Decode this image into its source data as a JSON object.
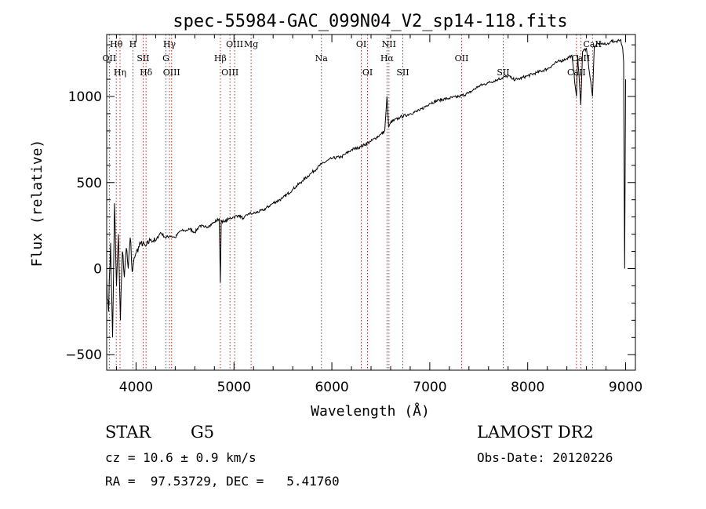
{
  "chart_data": {
    "type": "line",
    "title": "spec-55984-GAC_099N04_V2_sp14-118.fits",
    "xlabel": "Wavelength (Å)",
    "ylabel": "Flux (relative)",
    "xlim": [
      3700,
      9100
    ],
    "ylim": [
      -590,
      1360
    ],
    "xticks": [
      4000,
      5000,
      6000,
      7000,
      8000,
      9000
    ],
    "xtick_labels": [
      "4000",
      "5000",
      "6000",
      "7000",
      "8000",
      "9000"
    ],
    "yticks": [
      -500,
      0,
      500,
      1000
    ],
    "ytick_labels": [
      "−500",
      "0",
      "500",
      "1000"
    ],
    "grid": false,
    "legend": "none",
    "series": [
      {
        "color": "#000000",
        "x": [
          3700,
          3720,
          3740,
          3760,
          3780,
          3800,
          3820,
          3840,
          3860,
          3880,
          3900,
          3920,
          3940,
          3960,
          3980,
          4000,
          4050,
          4100,
          4150,
          4200,
          4250,
          4300,
          4350,
          4400,
          4450,
          4500,
          4550,
          4600,
          4650,
          4700,
          4750,
          4800,
          4850,
          4861,
          4870,
          4900,
          4950,
          5000,
          5050,
          5100,
          5150,
          5200,
          5300,
          5400,
          5500,
          5600,
          5700,
          5800,
          5900,
          6000,
          6100,
          6200,
          6300,
          6400,
          6500,
          6540,
          6563,
          6580,
          6600,
          6700,
          6800,
          6900,
          7000,
          7100,
          7200,
          7300,
          7400,
          7500,
          7600,
          7700,
          7800,
          7850,
          7900,
          8000,
          8100,
          8200,
          8300,
          8400,
          8450,
          8498,
          8510,
          8542,
          8560,
          8600,
          8662,
          8680,
          8700,
          8750,
          8800,
          8850,
          8900,
          8950,
          8970,
          8980,
          8990,
          9000
        ],
        "y": [
          -50,
          -250,
          150,
          -400,
          380,
          -100,
          200,
          -300,
          100,
          -50,
          120,
          0,
          180,
          -20,
          60,
          90,
          150,
          130,
          170,
          160,
          210,
          180,
          190,
          180,
          220,
          220,
          230,
          210,
          250,
          240,
          250,
          270,
          290,
          -80,
          280,
          270,
          290,
          300,
          310,
          290,
          320,
          320,
          340,
          380,
          410,
          460,
          510,
          560,
          610,
          640,
          650,
          690,
          710,
          740,
          780,
          800,
          1000,
          820,
          850,
          880,
          900,
          920,
          960,
          980,
          990,
          1000,
          1020,
          1060,
          1080,
          1100,
          1120,
          1100,
          1100,
          1120,
          1140,
          1160,
          1200,
          1220,
          1240,
          1000,
          1240,
          950,
          1260,
          1280,
          1000,
          1290,
          1300,
          1310,
          1300,
          1320,
          1320,
          1330,
          1280,
          1200,
          0,
          1100
        ]
      }
    ],
    "lines": [
      {
        "label": "Hθ",
        "x": 3798
      },
      {
        "label": "OII",
        "x": 3727
      },
      {
        "label": "Hη",
        "x": 3836
      },
      {
        "label": "H",
        "x": 3968
      },
      {
        "label": "SII",
        "x": 4072
      },
      {
        "label": "Hδ",
        "x": 4102
      },
      {
        "label": "Hγ",
        "x": 4341
      },
      {
        "label": "G",
        "x": 4305
      },
      {
        "label": "OIII",
        "x": 4363
      },
      {
        "label": "OIII",
        "x": 5007
      },
      {
        "label": "Hβ",
        "x": 4861
      },
      {
        "label": "OIII",
        "x": 4959
      },
      {
        "label": "Mg",
        "x": 5175
      },
      {
        "label": "Na",
        "x": 5893
      },
      {
        "label": "OI",
        "x": 6364
      },
      {
        "label": "OI",
        "x": 6300
      },
      {
        "label": "Hα",
        "x": 6563
      },
      {
        "label": "SII",
        "x": 6724
      },
      {
        "label": "NII",
        "x": 6583
      },
      {
        "label": "OII",
        "x": 7325
      },
      {
        "label": "SII",
        "x": 7750
      },
      {
        "label": "CaII",
        "x": 8662
      },
      {
        "label": "CaII",
        "x": 8542
      },
      {
        "label": "CaII",
        "x": 8498
      }
    ]
  },
  "info": {
    "class_type": "STAR",
    "subclass": "G5",
    "survey": "LAMOST DR2",
    "cz": "cz = 10.6 ± 0.9 km/s",
    "obs_date": "Obs-Date: 20120226",
    "radec": "RA =  97.53729, DEC =   5.41760"
  }
}
